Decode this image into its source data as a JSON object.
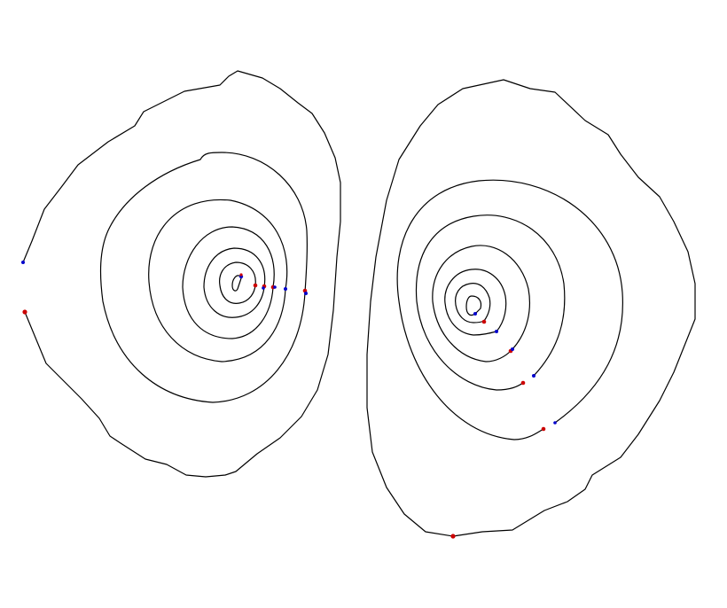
{
  "figure": {
    "background": "#ffffff",
    "line_color": "#000000",
    "marker_colors": {
      "red": "#cc0000",
      "blue": "#0000cc"
    }
  },
  "diagrams": [
    {
      "name": "left-contour-spiral",
      "contour_count": 6,
      "orientation": "counter-clockwise",
      "markers": {
        "red": 6,
        "blue": 6
      }
    },
    {
      "name": "right-contour-spiral",
      "contour_count": 6,
      "orientation": "clockwise",
      "markers": {
        "red": 6,
        "blue": 6
      }
    }
  ]
}
